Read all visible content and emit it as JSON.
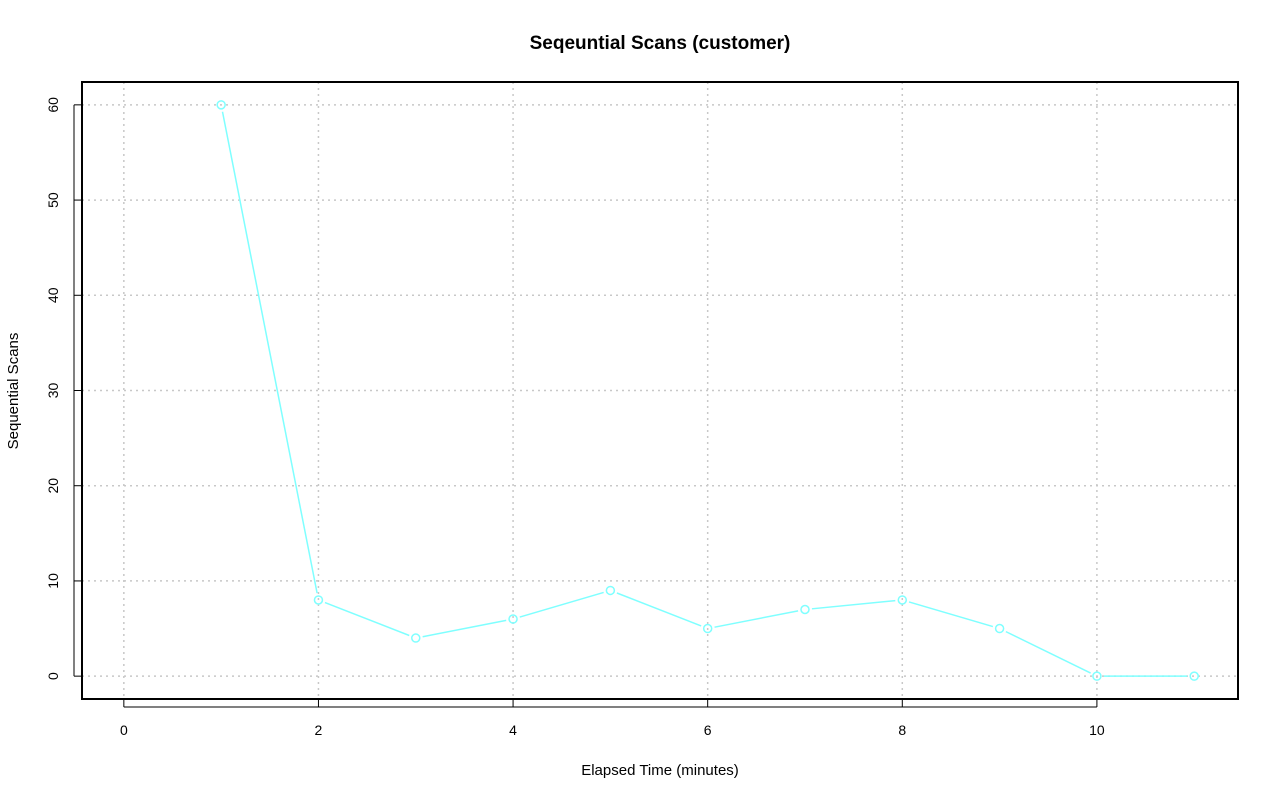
{
  "chart_data": {
    "type": "line",
    "title": "Seqeuntial Scans (customer)",
    "xlabel": "Elapsed Time (minutes)",
    "ylabel": "Sequential Scans",
    "xlim": [
      -0.43,
      11.45
    ],
    "ylim": [
      -2.4,
      62.4
    ],
    "x_ticks": [
      "0",
      "2",
      "4",
      "6",
      "8",
      "10"
    ],
    "y_ticks": [
      "0",
      "10",
      "20",
      "30",
      "40",
      "50",
      "60"
    ],
    "grid": true,
    "legend": "none",
    "series": [
      {
        "color": "#7fffff",
        "marker": "open-circle",
        "x": [
          1,
          2,
          3,
          4,
          5,
          6,
          7,
          8,
          9,
          10,
          11
        ],
        "values": [
          60,
          8,
          4,
          6,
          9,
          5,
          7,
          8,
          5,
          0,
          0
        ]
      }
    ]
  }
}
